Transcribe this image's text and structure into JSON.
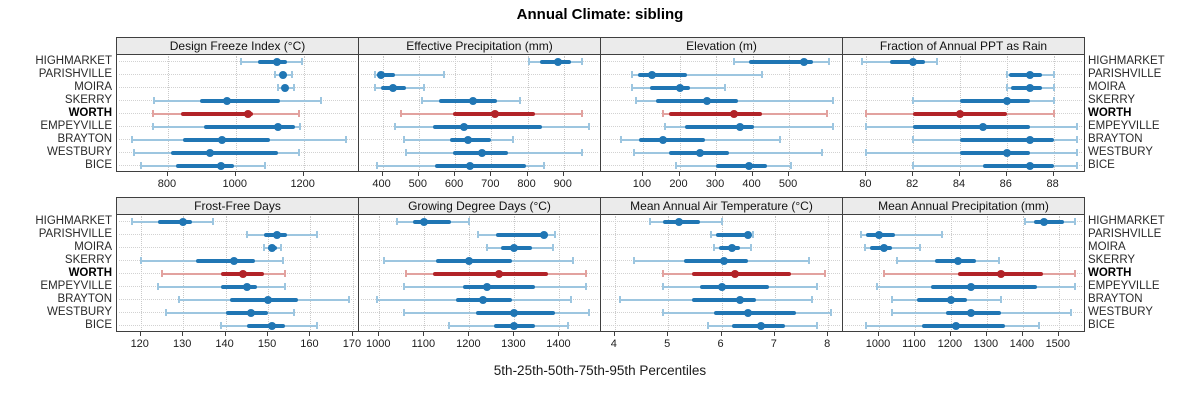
{
  "title": "Annual Climate: sibling",
  "axis_title": "5th-25th-50th-75th-95th Percentiles",
  "locations": [
    "HIGHMARKET",
    "PARISHVILLE",
    "MOIRA",
    "SKERRY",
    "WORTH",
    "EMPEYVILLE",
    "BRAYTON",
    "WESTBURY",
    "BICE"
  ],
  "highlighted_location": "WORTH",
  "colors": {
    "series_dark": "#2076b4",
    "series_light": "#9dc6e0",
    "highlight_dark": "#b22328",
    "highlight_light": "#e2a29f",
    "strip_bg": "#ebebeb",
    "grid": "#cccccc",
    "border": "#3f3f3f"
  },
  "chart_data": {
    "type": "dotplot-percentiles",
    "percentiles": [
      "5th",
      "25th",
      "50th",
      "75th",
      "95th"
    ],
    "legend_position": "bottom",
    "grid": "dotted",
    "panels": [
      {
        "title": "Design Freeze Index (°C)",
        "grid_row": 0,
        "grid_col": 0,
        "xlim": [
          650,
          1360
        ],
        "ticks": [
          800,
          1000,
          1200
        ],
        "series": [
          [
            1015,
            1065,
            1120,
            1150,
            1195
          ],
          [
            1115,
            1130,
            1140,
            1150,
            1165
          ],
          [
            1125,
            1135,
            1145,
            1155,
            1170
          ],
          [
            760,
            895,
            975,
            1130,
            1250
          ],
          [
            755,
            840,
            1035,
            1050,
            1185
          ],
          [
            755,
            905,
            1125,
            1175,
            1190
          ],
          [
            695,
            845,
            960,
            1100,
            1325
          ],
          [
            700,
            810,
            925,
            1125,
            1185
          ],
          [
            720,
            825,
            955,
            995,
            1085
          ]
        ]
      },
      {
        "title": "Effective Precipitation (mm)",
        "grid_row": 0,
        "grid_col": 1,
        "xlim": [
          335,
          1000
        ],
        "ticks": [
          400,
          500,
          600,
          700,
          800,
          900
        ],
        "series": [
          [
            805,
            835,
            885,
            920,
            950
          ],
          [
            380,
            385,
            395,
            435,
            570
          ],
          [
            380,
            395,
            430,
            465,
            515
          ],
          [
            510,
            555,
            650,
            715,
            780
          ],
          [
            450,
            595,
            710,
            820,
            950
          ],
          [
            435,
            540,
            625,
            840,
            970
          ],
          [
            460,
            585,
            635,
            700,
            760
          ],
          [
            465,
            595,
            675,
            745,
            950
          ],
          [
            385,
            545,
            640,
            795,
            845
          ]
        ]
      },
      {
        "title": "Elevation (m)",
        "grid_row": 0,
        "grid_col": 2,
        "xlim": [
          -15,
          645
        ],
        "ticks": [
          100,
          200,
          300,
          400,
          500
        ],
        "series": [
          [
            350,
            390,
            540,
            565,
            610
          ],
          [
            70,
            85,
            125,
            220,
            425
          ],
          [
            70,
            120,
            200,
            230,
            325
          ],
          [
            80,
            135,
            275,
            360,
            620
          ],
          [
            155,
            170,
            350,
            425,
            605
          ],
          [
            160,
            215,
            365,
            405,
            620
          ],
          [
            40,
            90,
            155,
            270,
            475
          ],
          [
            75,
            170,
            255,
            335,
            590
          ],
          [
            190,
            300,
            390,
            440,
            505
          ]
        ]
      },
      {
        "title": "Fraction of Annual PPT as Rain",
        "grid_row": 0,
        "grid_col": 3,
        "xlim": [
          79.0,
          89.3
        ],
        "ticks": [
          80,
          82,
          84,
          86,
          88
        ],
        "series": [
          [
            79.8,
            81,
            82,
            82.5,
            83
          ],
          [
            86,
            86.1,
            87,
            87.5,
            88
          ],
          [
            86,
            86.2,
            87,
            87.5,
            88
          ],
          [
            82,
            84,
            86,
            87,
            88
          ],
          [
            80,
            82,
            84,
            86,
            88
          ],
          [
            80,
            82,
            85,
            87,
            89
          ],
          [
            82,
            84,
            87,
            88,
            89
          ],
          [
            80,
            84,
            86,
            87,
            89
          ],
          [
            82,
            85,
            87,
            88,
            89
          ]
        ]
      },
      {
        "title": "Frost-Free Days",
        "grid_row": 1,
        "grid_col": 0,
        "xlim": [
          114.4,
          171.2
        ],
        "ticks": [
          120,
          130,
          140,
          150,
          160,
          170
        ],
        "series": [
          [
            118,
            124,
            130,
            132,
            137
          ],
          [
            145,
            149,
            152,
            154.5,
            161.5
          ],
          [
            149,
            150,
            151,
            152,
            153
          ],
          [
            120,
            133,
            142,
            147,
            153.5
          ],
          [
            125,
            139,
            144,
            149,
            154
          ],
          [
            124,
            139,
            145,
            147.5,
            154
          ],
          [
            129,
            141,
            150,
            157,
            169
          ],
          [
            126,
            140,
            146,
            150,
            156
          ],
          [
            139,
            145,
            151,
            154,
            161.5
          ]
        ]
      },
      {
        "title": "Growing Degree Days (°C)",
        "grid_row": 1,
        "grid_col": 1,
        "xlim": [
          955,
          1490
        ],
        "ticks": [
          1000,
          1100,
          1200,
          1300,
          1400
        ],
        "series": [
          [
            1040,
            1075,
            1100,
            1160,
            1200
          ],
          [
            1220,
            1260,
            1365,
            1375,
            1390
          ],
          [
            1240,
            1270,
            1300,
            1340,
            1385
          ],
          [
            1010,
            1125,
            1200,
            1295,
            1430
          ],
          [
            1060,
            1120,
            1265,
            1375,
            1460
          ],
          [
            1055,
            1185,
            1240,
            1345,
            1460
          ],
          [
            995,
            1170,
            1230,
            1295,
            1425
          ],
          [
            1055,
            1215,
            1300,
            1390,
            1465
          ],
          [
            1155,
            1255,
            1300,
            1345,
            1420
          ]
        ]
      },
      {
        "title": "Mean Annual Air Temperature (°C)",
        "grid_row": 1,
        "grid_col": 2,
        "xlim": [
          3.74,
          8.26
        ],
        "ticks": [
          4,
          5,
          6,
          7,
          8
        ],
        "series": [
          [
            4.65,
            4.9,
            5.2,
            5.6,
            6.0
          ],
          [
            5.8,
            5.9,
            6.5,
            6.55,
            6.6
          ],
          [
            5.85,
            5.95,
            6.2,
            6.35,
            6.55
          ],
          [
            4.35,
            5.3,
            6.05,
            6.5,
            7.65
          ],
          [
            4.9,
            5.45,
            6.25,
            7.3,
            7.95
          ],
          [
            4.9,
            5.6,
            6.0,
            6.9,
            7.8
          ],
          [
            4.1,
            5.45,
            6.35,
            6.65,
            7.7
          ],
          [
            4.9,
            5.85,
            6.5,
            7.4,
            8.05
          ],
          [
            5.75,
            6.2,
            6.75,
            7.2,
            7.8
          ]
        ]
      },
      {
        "title": "Mean Annual Precipitation (mm)",
        "grid_row": 1,
        "grid_col": 3,
        "xlim": [
          900,
          1570
        ],
        "ticks": [
          1000,
          1100,
          1200,
          1300,
          1400,
          1500
        ],
        "series": [
          [
            1405,
            1430,
            1460,
            1515,
            1545
          ],
          [
            950,
            965,
            1000,
            1045,
            1175
          ],
          [
            960,
            975,
            1015,
            1035,
            1115
          ],
          [
            1050,
            1155,
            1220,
            1270,
            1335
          ],
          [
            1015,
            1220,
            1340,
            1455,
            1545
          ],
          [
            995,
            1145,
            1255,
            1440,
            1545
          ],
          [
            1035,
            1105,
            1200,
            1245,
            1340
          ],
          [
            1035,
            1185,
            1255,
            1340,
            1535
          ],
          [
            965,
            1120,
            1215,
            1350,
            1445
          ]
        ]
      }
    ]
  }
}
